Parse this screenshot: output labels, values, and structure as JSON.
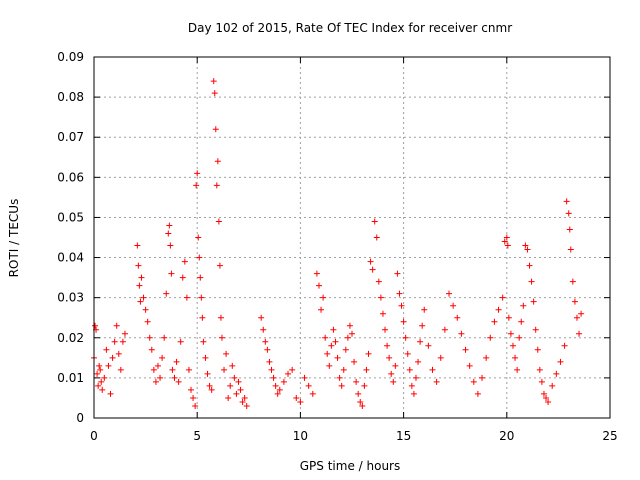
{
  "chart_data": {
    "type": "scatter",
    "title": "Day 102 of 2015, Rate Of TEC Index for receiver cnmr",
    "xlabel": "GPS time / hours",
    "ylabel": "ROTI / TECUs",
    "xlim": [
      0,
      25
    ],
    "ylim": [
      0,
      0.09
    ],
    "xticks": [
      0,
      5,
      10,
      15,
      20,
      25
    ],
    "yticks": [
      0,
      0.01,
      0.02,
      0.03,
      0.04,
      0.05,
      0.06,
      0.07,
      0.08,
      0.09
    ],
    "xtick_labels": [
      "0",
      "5",
      "10",
      "15",
      "20",
      "25"
    ],
    "ytick_labels": [
      "0",
      "0.01",
      "0.02",
      "0.03",
      "0.04",
      "0.05",
      "0.06",
      "0.07",
      "0.08",
      "0.09"
    ],
    "grid": true,
    "marker": "+",
    "marker_color": "#ff0000",
    "grid_color": "#a0a0a0",
    "series": [
      {
        "name": "ROTI",
        "x": [
          0.0,
          0.05,
          0.1,
          0.15,
          0.2,
          0.25,
          0.3,
          0.35,
          0.4,
          0.5,
          0.6,
          0.7,
          0.8,
          0.9,
          1.0,
          1.1,
          1.2,
          1.3,
          1.4,
          1.5,
          2.1,
          2.15,
          2.2,
          2.25,
          2.3,
          2.4,
          2.5,
          2.6,
          2.7,
          2.8,
          2.9,
          3.0,
          3.1,
          3.2,
          3.3,
          3.4,
          3.5,
          3.6,
          3.65,
          3.7,
          3.75,
          3.8,
          3.9,
          4.0,
          4.1,
          4.2,
          4.3,
          4.4,
          4.5,
          4.6,
          4.7,
          4.8,
          4.9,
          4.95,
          5.0,
          5.05,
          5.1,
          5.15,
          5.2,
          5.25,
          5.3,
          5.4,
          5.5,
          5.6,
          5.7,
          5.8,
          5.85,
          5.9,
          5.95,
          6.0,
          6.05,
          6.1,
          6.15,
          6.2,
          6.3,
          6.4,
          6.5,
          6.6,
          6.7,
          6.8,
          6.9,
          7.0,
          7.1,
          7.2,
          7.3,
          7.4,
          8.1,
          8.2,
          8.3,
          8.4,
          8.5,
          8.6,
          8.7,
          8.8,
          8.9,
          9.0,
          9.2,
          9.4,
          9.6,
          9.8,
          10.0,
          10.2,
          10.4,
          10.6,
          10.8,
          10.9,
          11.0,
          11.1,
          11.2,
          11.3,
          11.4,
          11.5,
          11.6,
          11.7,
          11.8,
          11.9,
          12.0,
          12.1,
          12.2,
          12.3,
          12.4,
          12.5,
          12.6,
          12.7,
          12.8,
          12.9,
          13.0,
          13.1,
          13.2,
          13.3,
          13.4,
          13.5,
          13.6,
          13.7,
          13.8,
          13.9,
          14.0,
          14.1,
          14.2,
          14.3,
          14.4,
          14.5,
          14.6,
          14.7,
          14.8,
          14.9,
          15.0,
          15.1,
          15.2,
          15.3,
          15.4,
          15.5,
          15.6,
          15.7,
          15.8,
          15.9,
          16.0,
          16.2,
          16.4,
          16.6,
          16.8,
          17.0,
          17.2,
          17.4,
          17.6,
          17.8,
          18.0,
          18.2,
          18.4,
          18.6,
          18.8,
          19.0,
          19.2,
          19.4,
          19.6,
          19.8,
          19.9,
          20.0,
          20.05,
          20.1,
          20.2,
          20.3,
          20.4,
          20.5,
          20.6,
          20.7,
          20.8,
          20.9,
          21.0,
          21.1,
          21.2,
          21.3,
          21.4,
          21.5,
          21.6,
          21.7,
          21.8,
          21.9,
          22.0,
          22.2,
          22.4,
          22.6,
          22.8,
          22.9,
          23.0,
          23.05,
          23.1,
          23.2,
          23.3,
          23.4,
          23.5,
          23.6
        ],
        "y": [
          0.015,
          0.023,
          0.022,
          0.011,
          0.008,
          0.013,
          0.012,
          0.009,
          0.007,
          0.01,
          0.017,
          0.013,
          0.006,
          0.015,
          0.019,
          0.023,
          0.016,
          0.012,
          0.019,
          0.021,
          0.043,
          0.038,
          0.033,
          0.029,
          0.035,
          0.03,
          0.027,
          0.024,
          0.02,
          0.017,
          0.012,
          0.009,
          0.013,
          0.01,
          0.015,
          0.02,
          0.031,
          0.046,
          0.048,
          0.043,
          0.036,
          0.012,
          0.01,
          0.014,
          0.009,
          0.019,
          0.035,
          0.039,
          0.03,
          0.012,
          0.007,
          0.005,
          0.003,
          0.058,
          0.061,
          0.045,
          0.04,
          0.035,
          0.03,
          0.025,
          0.019,
          0.015,
          0.011,
          0.008,
          0.007,
          0.084,
          0.081,
          0.072,
          0.058,
          0.064,
          0.049,
          0.038,
          0.025,
          0.02,
          0.012,
          0.016,
          0.005,
          0.008,
          0.013,
          0.01,
          0.006,
          0.009,
          0.007,
          0.004,
          0.005,
          0.003,
          0.025,
          0.022,
          0.019,
          0.017,
          0.014,
          0.012,
          0.01,
          0.008,
          0.006,
          0.007,
          0.009,
          0.011,
          0.012,
          0.005,
          0.004,
          0.01,
          0.008,
          0.006,
          0.036,
          0.033,
          0.027,
          0.03,
          0.02,
          0.016,
          0.013,
          0.018,
          0.022,
          0.019,
          0.015,
          0.01,
          0.008,
          0.012,
          0.017,
          0.02,
          0.023,
          0.021,
          0.014,
          0.009,
          0.006,
          0.004,
          0.003,
          0.008,
          0.012,
          0.016,
          0.039,
          0.037,
          0.049,
          0.045,
          0.034,
          0.03,
          0.026,
          0.022,
          0.018,
          0.015,
          0.011,
          0.009,
          0.013,
          0.036,
          0.031,
          0.028,
          0.024,
          0.02,
          0.016,
          0.012,
          0.008,
          0.006,
          0.01,
          0.014,
          0.019,
          0.023,
          0.027,
          0.018,
          0.012,
          0.009,
          0.015,
          0.022,
          0.031,
          0.028,
          0.025,
          0.021,
          0.017,
          0.013,
          0.009,
          0.006,
          0.01,
          0.015,
          0.02,
          0.024,
          0.027,
          0.03,
          0.044,
          0.045,
          0.043,
          0.025,
          0.021,
          0.018,
          0.015,
          0.012,
          0.02,
          0.024,
          0.028,
          0.043,
          0.042,
          0.038,
          0.034,
          0.029,
          0.022,
          0.017,
          0.012,
          0.009,
          0.006,
          0.005,
          0.004,
          0.008,
          0.011,
          0.014,
          0.018,
          0.054,
          0.051,
          0.047,
          0.042,
          0.034,
          0.029,
          0.025,
          0.021,
          0.026
        ]
      }
    ]
  }
}
